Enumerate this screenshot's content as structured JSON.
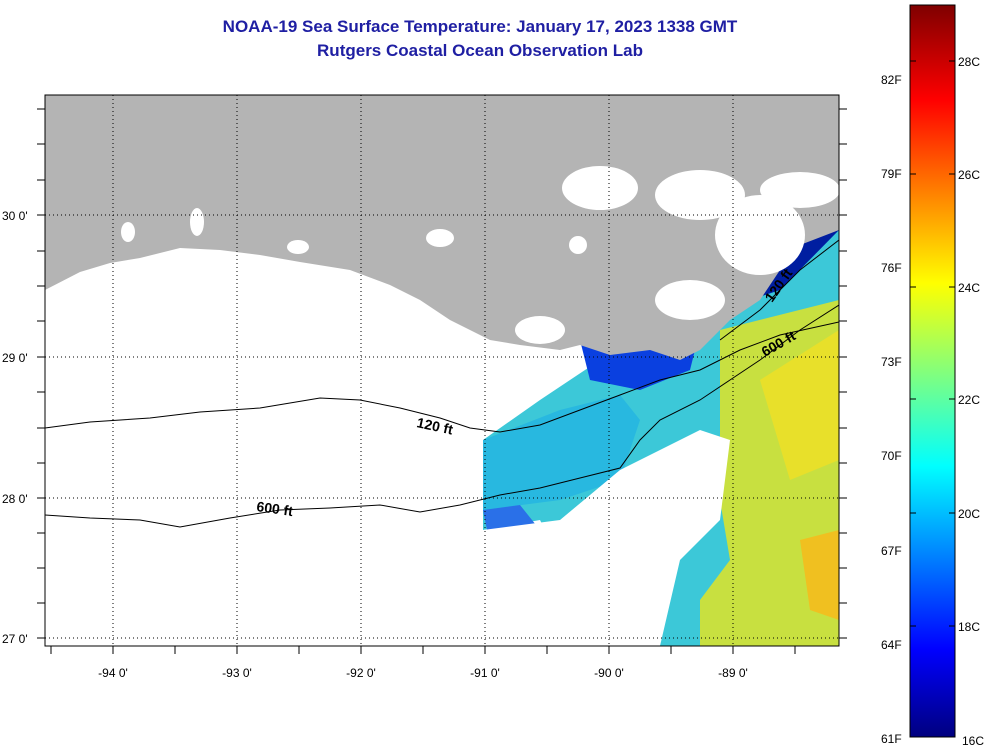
{
  "header": {
    "title": "NOAA-19 Sea Surface Temperature:  January 17, 2023 1338 GMT",
    "subtitle": "Rutgers Coastal Ocean Observation Lab"
  },
  "map": {
    "lat_labels": [
      "30 0'",
      "29 0'",
      "28 0'",
      "27 0'"
    ],
    "lon_labels": [
      "-94 0'",
      "-93 0'",
      "-92 0'",
      "-91 0'",
      "-90 0'",
      "-89 0'"
    ],
    "contours": [
      {
        "label": "120 ft"
      },
      {
        "label": "600 ft"
      },
      {
        "label": "120 ft"
      },
      {
        "label": "600 ft"
      }
    ],
    "colors": {
      "land": "#b4b4b4",
      "cloud": "#ffffff"
    }
  },
  "colorbar": {
    "f_labels": [
      "82F",
      "79F",
      "76F",
      "73F",
      "70F",
      "67F",
      "64F",
      "61F"
    ],
    "c_labels": [
      "28C",
      "26C",
      "24C",
      "22C",
      "20C",
      "18C",
      "16C"
    ],
    "colors": [
      "#00007f",
      "#0000ff",
      "#00ffff",
      "#ffff00",
      "#ff0000",
      "#7f0000"
    ]
  }
}
